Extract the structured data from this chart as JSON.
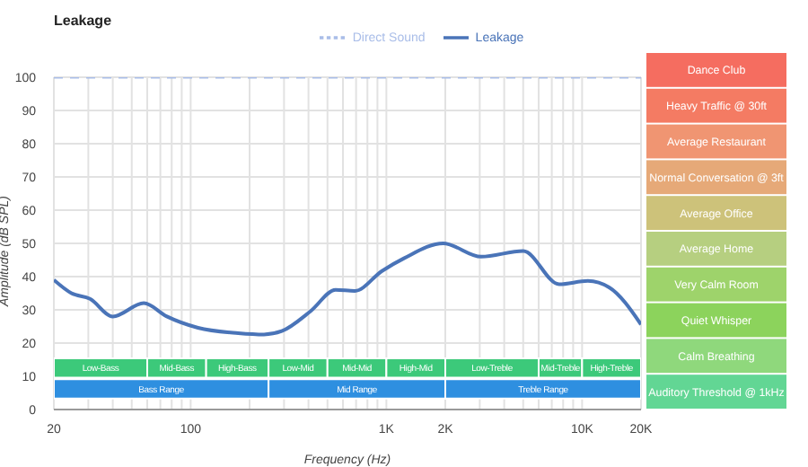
{
  "chart_data": {
    "type": "line",
    "title": "Leakage",
    "xlabel": "Frequency (Hz)",
    "ylabel": "Amplitude (dB SPL)",
    "log": "x",
    "grid": true,
    "legend": "top",
    "xlim": [
      20,
      20000
    ],
    "ylim": [
      0,
      100
    ],
    "xticks": [
      20,
      {
        "value": 30,
        "label": null
      },
      {
        "value": 40,
        "label": null
      },
      {
        "value": 50,
        "label": null
      },
      {
        "value": 60,
        "label": null
      },
      {
        "value": 70,
        "label": null
      },
      {
        "value": 80,
        "label": null
      },
      {
        "value": 90,
        "label": null
      },
      100,
      {
        "value": 200,
        "label": null
      },
      {
        "value": 300,
        "label": null
      },
      {
        "value": 400,
        "label": null
      },
      {
        "value": 500,
        "label": null
      },
      {
        "value": 600,
        "label": null
      },
      {
        "value": 700,
        "label": null
      },
      {
        "value": 800,
        "label": null
      },
      {
        "value": 900,
        "label": null
      },
      {
        "value": 1000,
        "label": "1K"
      },
      {
        "value": 2000,
        "label": "2K"
      },
      {
        "value": 3000,
        "label": null
      },
      {
        "value": 4000,
        "label": null
      },
      {
        "value": 5000,
        "label": null
      },
      {
        "value": 6000,
        "label": null
      },
      {
        "value": 7000,
        "label": null
      },
      {
        "value": 8000,
        "label": null
      },
      {
        "value": 9000,
        "label": null
      },
      {
        "value": 10000,
        "label": "10K"
      },
      {
        "value": 20000,
        "label": "20K"
      }
    ],
    "yticks": [
      0,
      10,
      20,
      30,
      40,
      50,
      60,
      70,
      80,
      90,
      100
    ],
    "series": [
      {
        "name": "Leakage",
        "color": "#4a74b8",
        "line_style": "solid",
        "x": [
          20,
          24.6,
          30.6,
          40,
          57.6,
          75.6,
          109,
          175,
          237,
          292,
          410,
          550,
          690,
          950,
          1230,
          1950,
          3050,
          5000,
          7630,
          10700,
          13800,
          20000
        ],
        "values": [
          39,
          35,
          33.3,
          28,
          32,
          28,
          24.6,
          23,
          22.6,
          23.6,
          29.6,
          36,
          35.7,
          41.7,
          45.5,
          50,
          46,
          47.7,
          37.7,
          38.7,
          36.7,
          25.6
        ]
      },
      {
        "name": "Direct Sound",
        "color": "#a9bde8",
        "line_style": "dashed",
        "x": [
          20,
          20000
        ],
        "values": [
          100,
          100
        ]
      }
    ],
    "bands": [
      {
        "axis": "x",
        "from": 20,
        "to": 60,
        "label": "Low-Bass",
        "color": "#3cc97a"
      },
      {
        "axis": "x",
        "from": 60,
        "to": 120,
        "label": "Mid-Bass",
        "color": "#3cc97a"
      },
      {
        "axis": "x",
        "from": 120,
        "to": 250,
        "label": "High-Bass",
        "color": "#3cc97a"
      },
      {
        "axis": "x",
        "from": 250,
        "to": 500,
        "label": "Low-Mid",
        "color": "#3cc97a"
      },
      {
        "axis": "x",
        "from": 500,
        "to": 1000,
        "label": "Mid-Mid",
        "color": "#3cc97a"
      },
      {
        "axis": "x",
        "from": 1000,
        "to": 2000,
        "label": "High-Mid",
        "color": "#3cc97a"
      },
      {
        "axis": "x",
        "from": 2000,
        "to": 6000,
        "label": "Low-Treble",
        "color": "#3cc97a"
      },
      {
        "axis": "x",
        "from": 6000,
        "to": 10000,
        "label": "Mid-Treble",
        "color": "#3cc97a"
      },
      {
        "axis": "x",
        "from": 10000,
        "to": 20000,
        "label": "High-Treble",
        "color": "#3cc97a"
      },
      {
        "axis": "x",
        "from": 20,
        "to": 250,
        "label": "Bass Range",
        "color": "#2e8fe0"
      },
      {
        "axis": "x",
        "from": 250,
        "to": 2000,
        "label": "Mid Range",
        "color": "#2e8fe0"
      },
      {
        "axis": "x",
        "from": 2000,
        "to": 20000,
        "label": "Treble Range",
        "color": "#2e8fe0"
      }
    ],
    "annotations": [
      "Dance Club",
      "Heavy Traffic @ 30ft",
      "Average Restaurant",
      "Normal Conversation @ 3ft",
      "Average Office",
      "Average Home",
      "Very Calm Room",
      "Quiet Whisper",
      "Calm Breathing",
      "Auditory Threshold @ 1kHz"
    ]
  }
}
